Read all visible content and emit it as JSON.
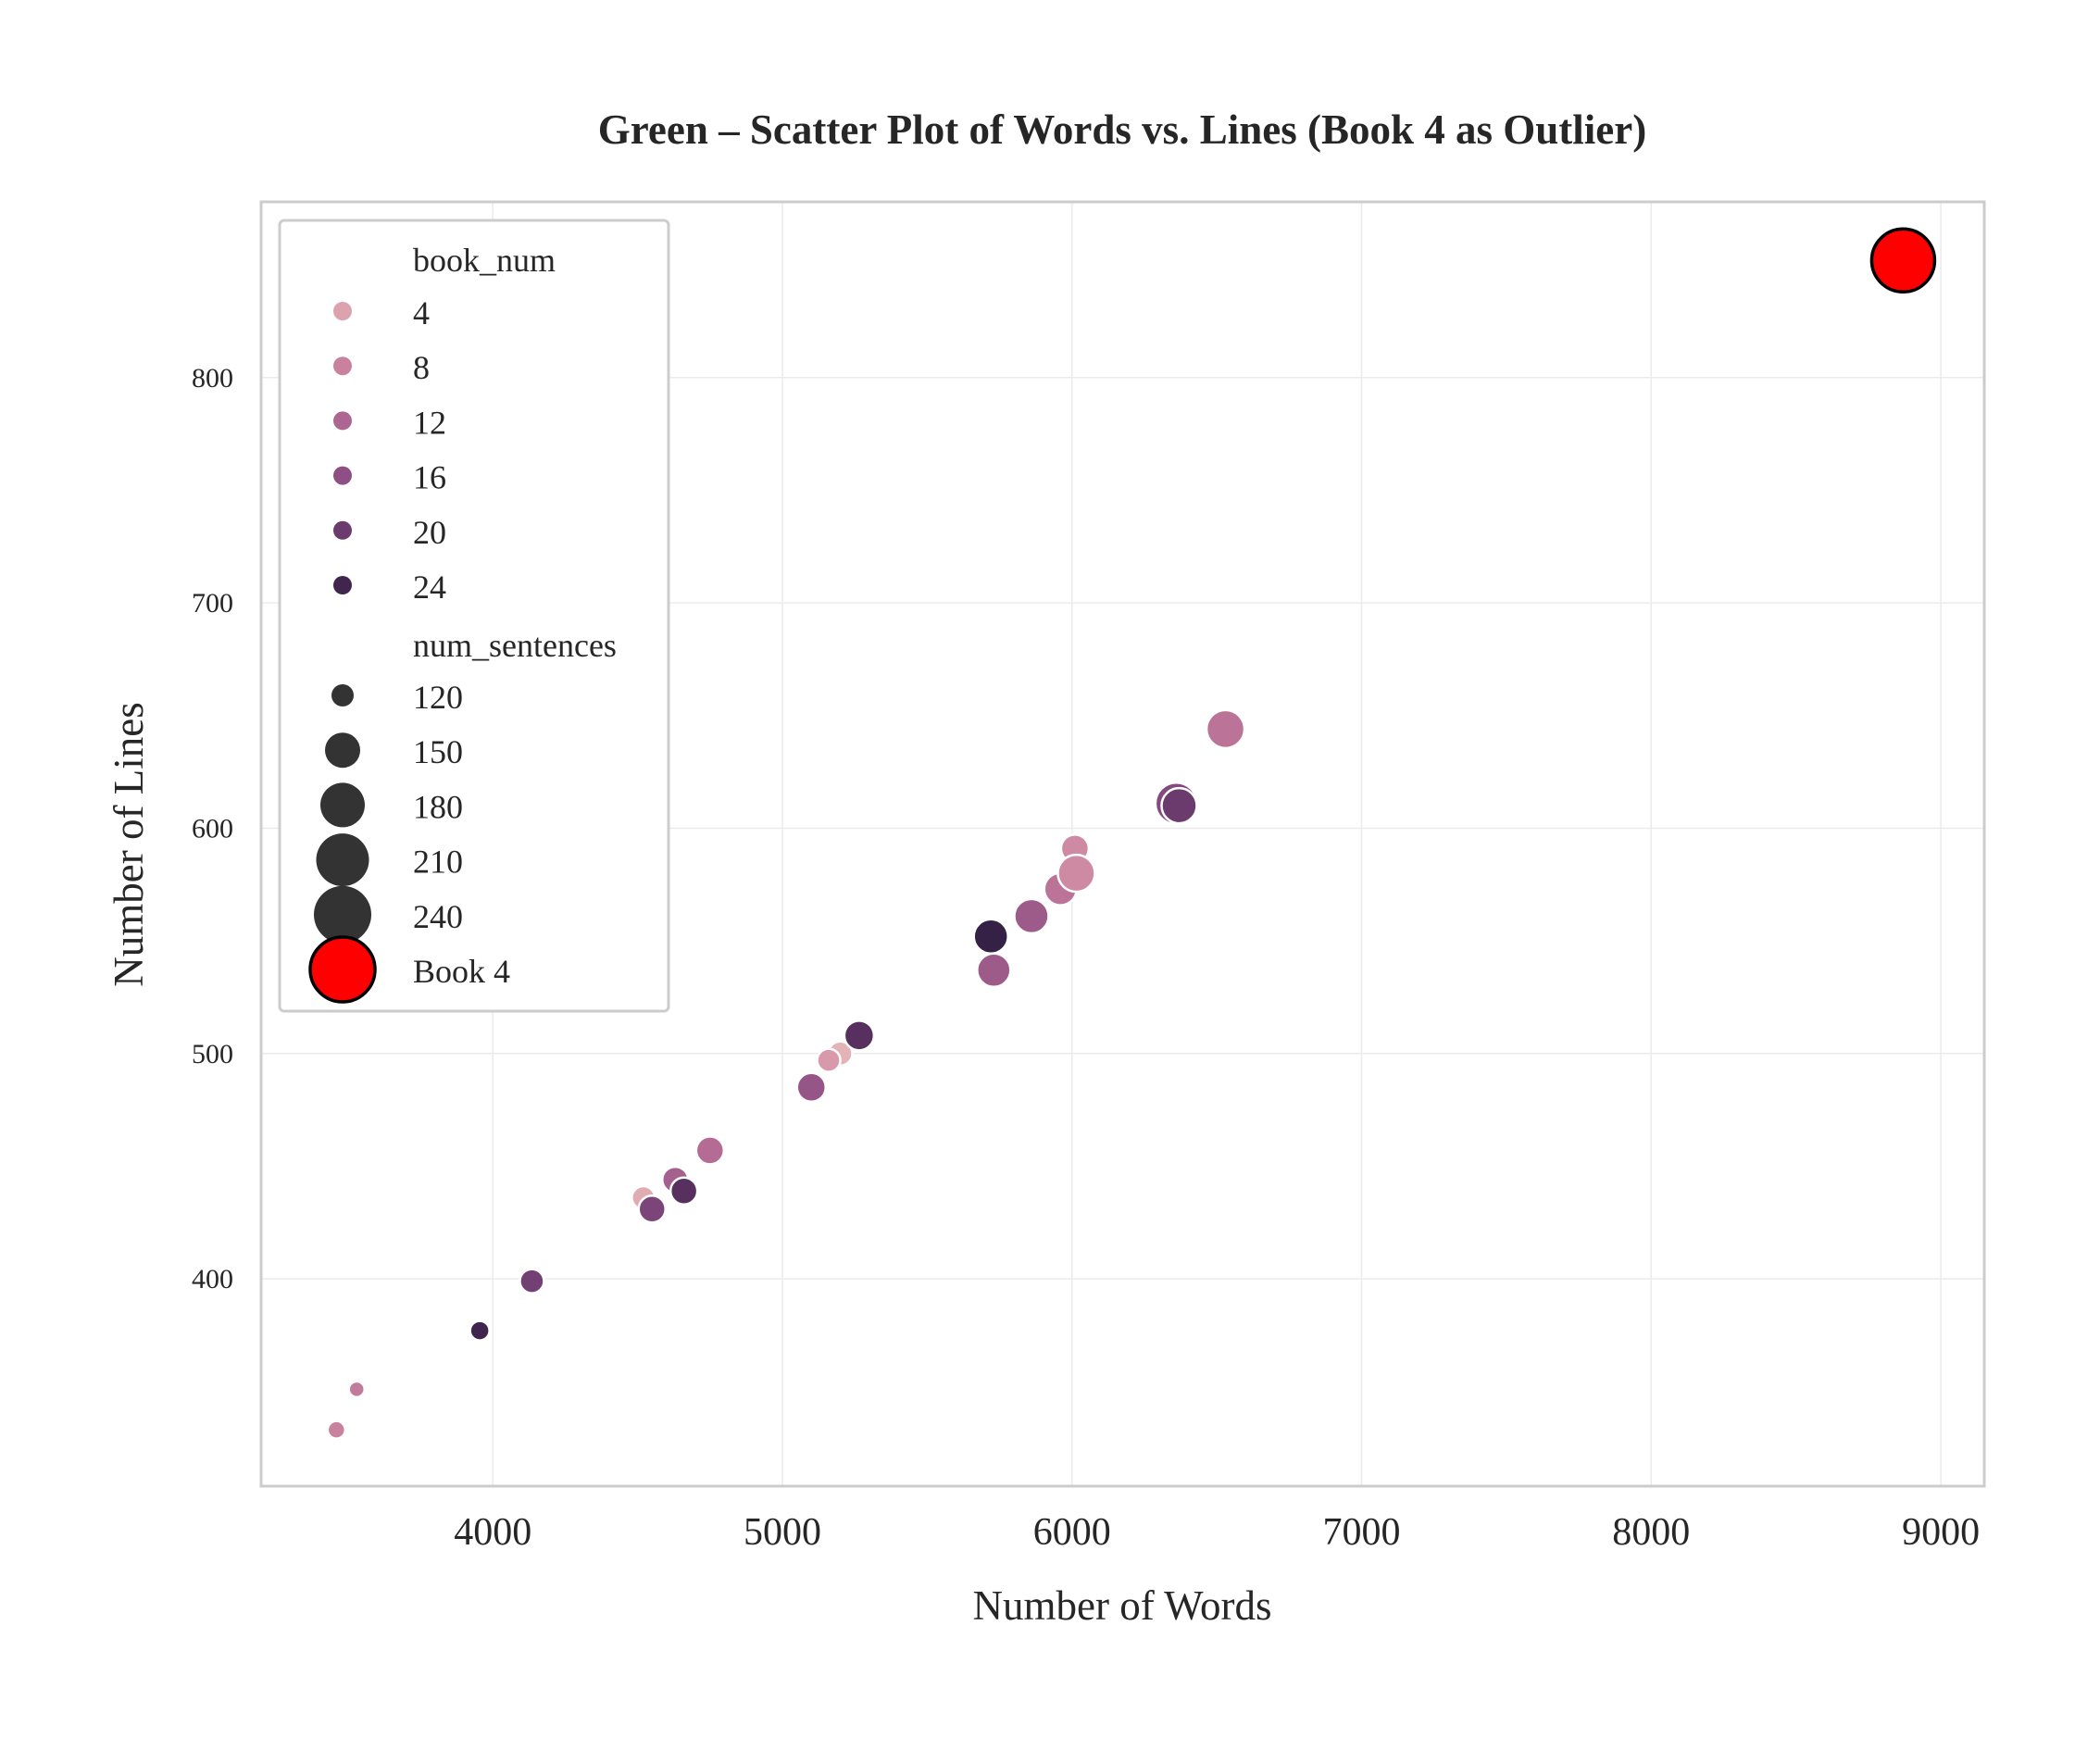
{
  "chart_data": {
    "type": "scatter",
    "title": "Green – Scatter Plot of Words vs. Lines (Book 4 as Outlier)",
    "xlabel": "Number of Words",
    "ylabel": "Number of Lines",
    "xlim": [
      3200,
      9150
    ],
    "ylim": [
      308,
      878
    ],
    "xticks": [
      4000,
      5000,
      6000,
      7000,
      8000,
      9000
    ],
    "yticks": [
      400,
      500,
      600,
      700,
      800
    ],
    "grid": true,
    "legend_position": "top-left",
    "hue": {
      "name": "book_num",
      "legend_values": [
        4,
        8,
        12,
        16,
        20,
        24
      ],
      "range": [
        1,
        26
      ],
      "colors": [
        "#e8bcbc",
        "#d491a5",
        "#b56c94",
        "#8d4f84",
        "#623668",
        "#2a1a3d"
      ]
    },
    "size": {
      "name": "num_sentences",
      "legend_values": [
        120,
        150,
        180,
        210,
        240
      ]
    },
    "outlier": {
      "label": "Book 4",
      "words": 8870,
      "lines": 852,
      "color": "#ff0000",
      "edge_color": "#000000"
    },
    "points": [
      {
        "words": 3460,
        "lines": 333,
        "book_num": 8,
        "num_sentences": 115
      },
      {
        "words": 3530,
        "lines": 351,
        "book_num": 9,
        "num_sentences": 105
      },
      {
        "words": 3955,
        "lines": 377,
        "book_num": 24,
        "num_sentences": 125
      },
      {
        "words": 4135,
        "lines": 399,
        "book_num": 19,
        "num_sentences": 150
      },
      {
        "words": 4520,
        "lines": 436,
        "book_num": 3,
        "num_sentences": 145
      },
      {
        "words": 4630,
        "lines": 444,
        "book_num": 13,
        "num_sentences": 160
      },
      {
        "words": 4550,
        "lines": 431,
        "book_num": 18,
        "num_sentences": 165
      },
      {
        "words": 4660,
        "lines": 439,
        "book_num": 22,
        "num_sentences": 165
      },
      {
        "words": 4750,
        "lines": 457,
        "book_num": 11,
        "num_sentences": 170
      },
      {
        "words": 5200,
        "lines": 500,
        "book_num": 2,
        "num_sentences": 150
      },
      {
        "words": 5160,
        "lines": 497,
        "book_num": 5,
        "num_sentences": 145
      },
      {
        "words": 5100,
        "lines": 485,
        "book_num": 15,
        "num_sentences": 175
      },
      {
        "words": 5265,
        "lines": 508,
        "book_num": 22,
        "num_sentences": 180
      },
      {
        "words": 5730,
        "lines": 537,
        "book_num": 14,
        "num_sentences": 200
      },
      {
        "words": 5720,
        "lines": 552,
        "book_num": 25,
        "num_sentences": 205
      },
      {
        "words": 5860,
        "lines": 561,
        "book_num": 14,
        "num_sentences": 205
      },
      {
        "words": 5960,
        "lines": 573,
        "book_num": 10,
        "num_sentences": 195
      },
      {
        "words": 6010,
        "lines": 591,
        "book_num": 7,
        "num_sentences": 170
      },
      {
        "words": 6015,
        "lines": 580,
        "book_num": 7,
        "num_sentences": 220
      },
      {
        "words": 6360,
        "lines": 611,
        "book_num": 17,
        "num_sentences": 245
      },
      {
        "words": 6370,
        "lines": 610,
        "book_num": 20,
        "num_sentences": 210
      },
      {
        "words": 6530,
        "lines": 644,
        "book_num": 10,
        "num_sentences": 225
      }
    ]
  }
}
